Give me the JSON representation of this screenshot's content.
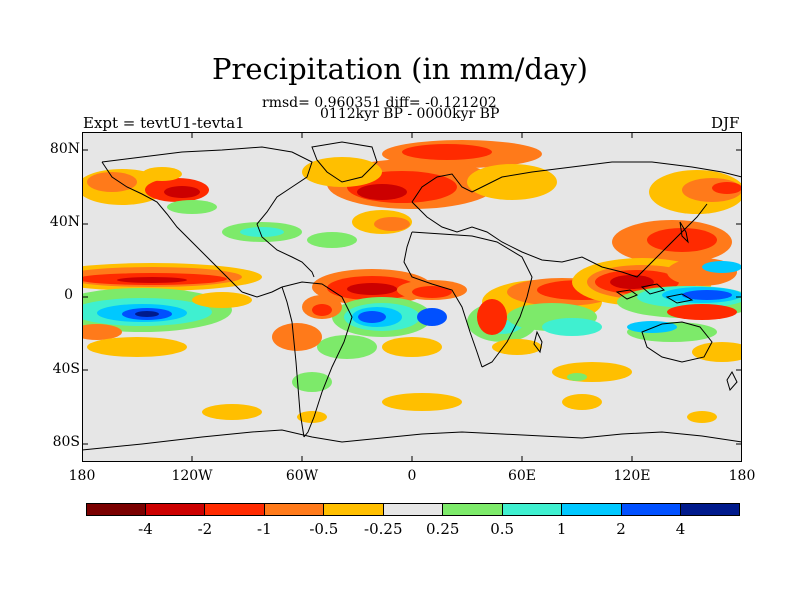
{
  "title": "Precipitation (in mm/day)",
  "stats": "rmsd= 0.960351 diff= -0.121202",
  "period": "0112kyr BP - 0000kyr BP",
  "experiment": "Expt = tevtU1-tevta1",
  "season": "DJF",
  "map": {
    "lat_labels": [
      "80N",
      "40N",
      "0",
      "40S",
      "80S"
    ],
    "lon_labels": [
      "180",
      "120W",
      "60W",
      "0",
      "60E",
      "120E",
      "180"
    ]
  },
  "colorbar": {
    "colors": [
      "#7a0000",
      "#cc0000",
      "#ff2a00",
      "#ff7a1a",
      "#ffbf00",
      "#e6e6e6",
      "#7dea6a",
      "#3ff0d0",
      "#00c8ff",
      "#0050ff",
      "#001a8c"
    ],
    "labels": [
      "-4",
      "-2",
      "-1",
      "-0.5",
      "-0.25",
      "0.25",
      "0.5",
      "1",
      "2",
      "4"
    ]
  }
}
